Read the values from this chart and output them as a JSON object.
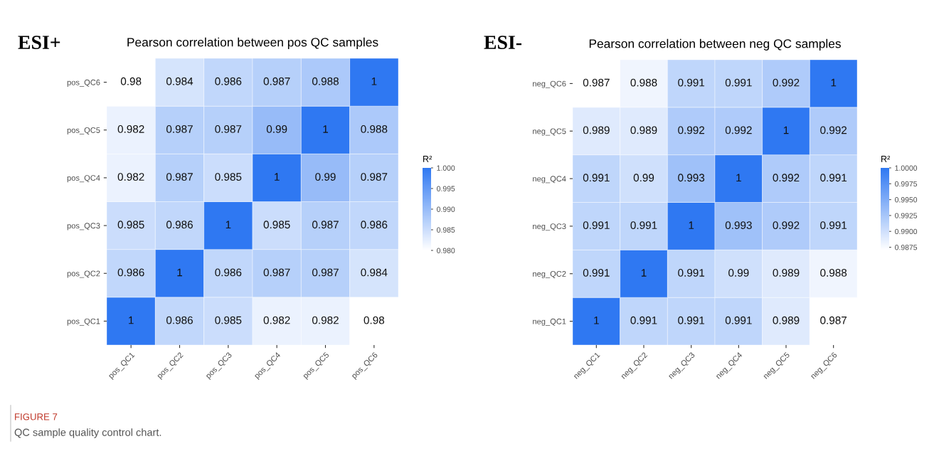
{
  "chart_data": [
    {
      "type": "heatmap",
      "title": "Pearson correlation between pos QC samples",
      "color": "#2f78f2",
      "clabel": "R²",
      "data_labels": true,
      "annotations": [
        "ESI+",
        "FIGURE 7",
        "QC sample quality control chart."
      ],
      "categories": [
        "pos_QC1",
        "pos_QC2",
        "pos_QC3",
        "pos_QC4",
        "pos_QC5",
        "pos_QC6"
      ],
      "y_categories": [
        "pos_QC6",
        "pos_QC5",
        "pos_QC4",
        "pos_QC3",
        "pos_QC2",
        "pos_QC1"
      ],
      "cells": [
        [
          0.98,
          0.984,
          0.986,
          0.987,
          0.988,
          1
        ],
        [
          0.982,
          0.987,
          0.987,
          0.99,
          1,
          0.988
        ],
        [
          0.982,
          0.987,
          0.985,
          1,
          0.99,
          0.987
        ],
        [
          0.985,
          0.986,
          1,
          0.985,
          0.987,
          0.986
        ],
        [
          0.986,
          1,
          0.986,
          0.987,
          0.987,
          0.984
        ],
        [
          1,
          0.986,
          0.985,
          0.982,
          0.982,
          0.98
        ]
      ],
      "clim": [
        0.98,
        1.0
      ],
      "cticks": [
        {
          "value": 0.98,
          "label": "0.980"
        },
        {
          "value": 0.985,
          "label": "0.985"
        },
        {
          "value": 0.99,
          "label": "0.990"
        },
        {
          "value": 0.995,
          "label": "0.995"
        },
        {
          "value": 1.0,
          "label": "1.000"
        }
      ]
    },
    {
      "type": "heatmap",
      "title": "Pearson correlation between neg QC samples",
      "color": "#2f78f2",
      "clabel": "R²",
      "data_labels": true,
      "annotations": [
        "ESI-"
      ],
      "categories": [
        "neg_QC1",
        "neg_QC2",
        "neg_QC3",
        "neg_QC4",
        "neg_QC5",
        "neg_QC6"
      ],
      "y_categories": [
        "neg_QC6",
        "neg_QC5",
        "neg_QC4",
        "neg_QC3",
        "neg_QC2",
        "neg_QC1"
      ],
      "cells": [
        [
          0.987,
          0.988,
          0.991,
          0.991,
          0.992,
          1
        ],
        [
          0.989,
          0.989,
          0.992,
          0.992,
          1,
          0.992
        ],
        [
          0.991,
          0.99,
          0.993,
          1,
          0.992,
          0.991
        ],
        [
          0.991,
          0.991,
          1,
          0.993,
          0.992,
          0.991
        ],
        [
          0.991,
          1,
          0.991,
          0.99,
          0.989,
          0.988
        ],
        [
          1,
          0.991,
          0.991,
          0.991,
          0.989,
          0.987
        ]
      ],
      "clim": [
        0.987,
        1.0
      ],
      "cticks": [
        {
          "value": 0.9875,
          "label": "0.9875"
        },
        {
          "value": 0.99,
          "label": "0.9900"
        },
        {
          "value": 0.9925,
          "label": "0.9925"
        },
        {
          "value": 0.995,
          "label": "0.9950"
        },
        {
          "value": 0.9975,
          "label": "0.9975"
        },
        {
          "value": 1.0,
          "label": "1.0000"
        }
      ]
    }
  ]
}
